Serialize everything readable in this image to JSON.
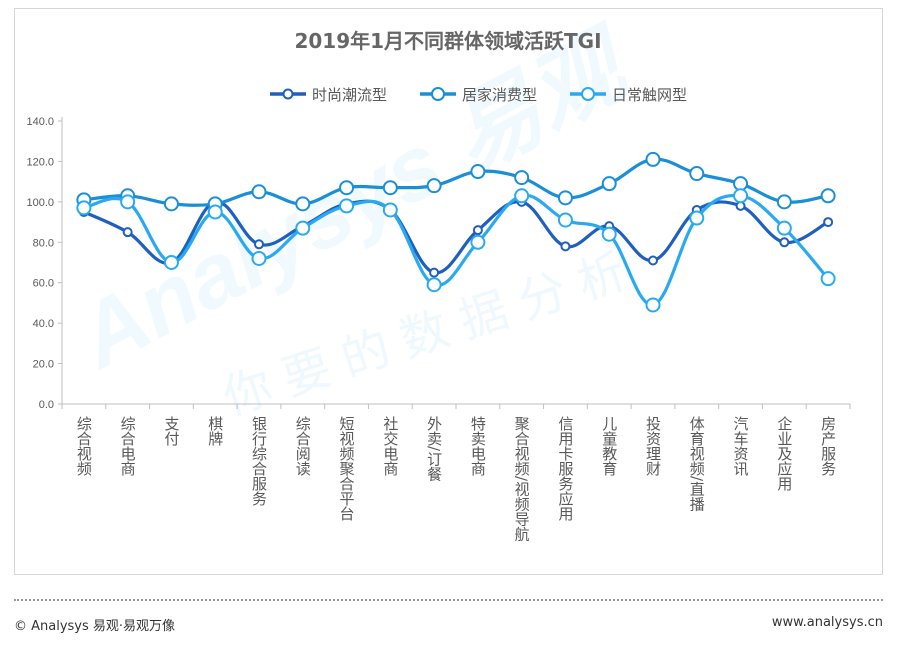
{
  "chart_data": {
    "type": "line",
    "title": "2019年1月不同群体领域活跃TGI",
    "ylim": [
      0,
      140
    ],
    "yticks": [
      "0.0",
      "20.0",
      "40.0",
      "60.0",
      "80.0",
      "100.0",
      "120.0",
      "140.0"
    ],
    "grid": false,
    "legend_position": "top",
    "categories": [
      "综合视频",
      "综合电商",
      "支付",
      "棋牌",
      "银行综合服务",
      "综合阅读",
      "短视频聚合平台",
      "社交电商",
      "外卖/订餐",
      "特卖电商",
      "聚合视频/视频导航",
      "信用卡服务应用",
      "儿童教育",
      "投资理财",
      "体育视频/直播",
      "汽车资讯",
      "企业及应用",
      "房产服务"
    ],
    "series": [
      {
        "name": "时尚潮流型",
        "color": "#1f5fbf",
        "marker": "small",
        "values": [
          95,
          85,
          70,
          100,
          79,
          88,
          99,
          96,
          65,
          86,
          100,
          78,
          88,
          71,
          96,
          98,
          80,
          90
        ]
      },
      {
        "name": "居家消费型",
        "color": "#1a8fd8",
        "marker": "large",
        "values": [
          101,
          103,
          99,
          99,
          105,
          99,
          107,
          107,
          108,
          115,
          112,
          102,
          109,
          121,
          114,
          109,
          100,
          103
        ]
      },
      {
        "name": "日常触网型",
        "color": "#29aaf0",
        "marker": "large",
        "values": [
          97,
          100,
          70,
          95,
          72,
          87,
          98,
          96,
          59,
          80,
          103,
          91,
          84,
          49,
          92,
          103,
          87,
          62
        ]
      }
    ]
  },
  "watermark": {
    "brand": "Analysys 易观",
    "slogan": "你要的数据分析"
  },
  "footer": {
    "left": "© Analysys 易观·易观万像",
    "right": "www.analysys.cn"
  }
}
